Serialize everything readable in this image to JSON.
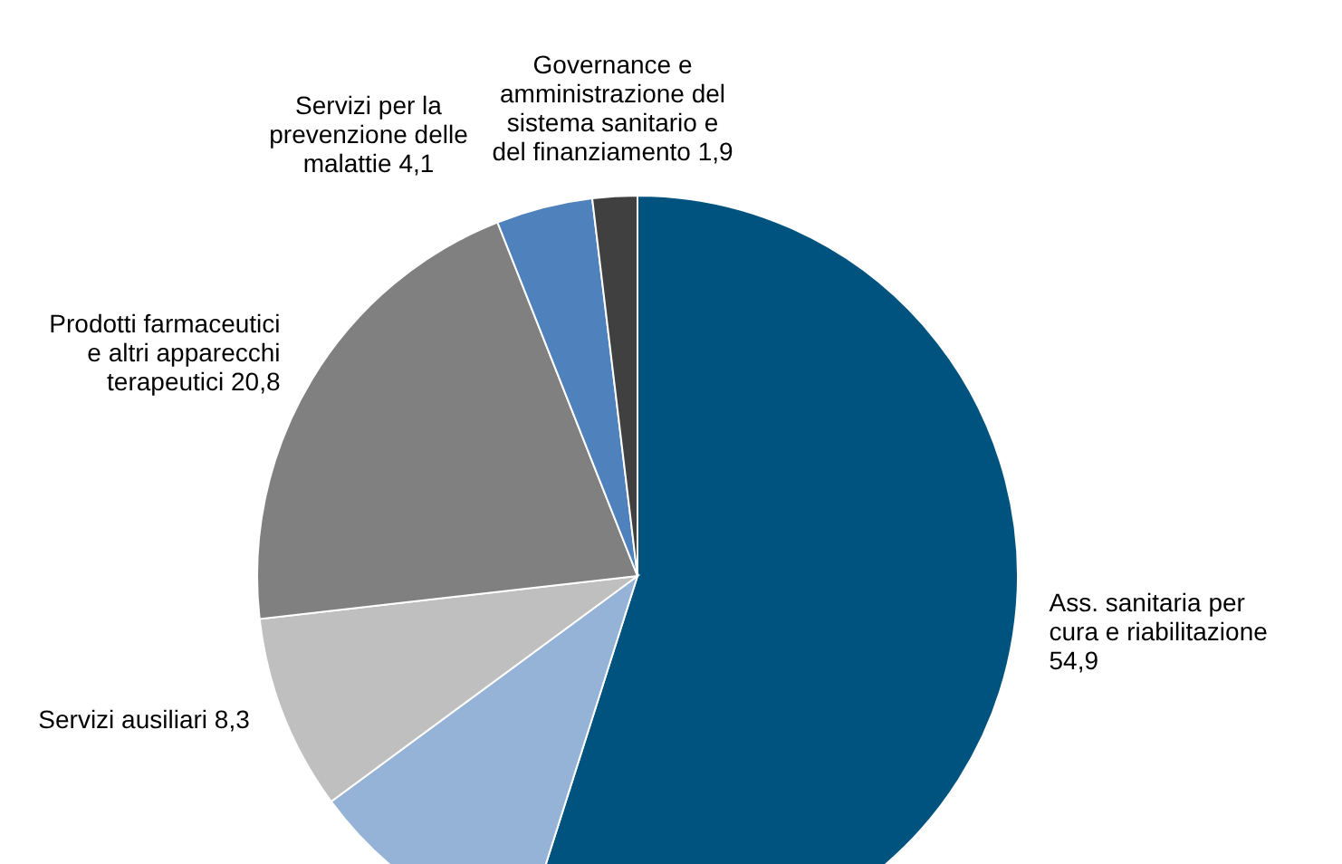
{
  "chart_data": {
    "type": "pie",
    "categories": [
      "Ass. sanitaria per cura e riabilitazione",
      null,
      "Servizi ausiliari",
      "Prodotti farmaceutici e altri apparecchi terapeutici",
      "Servizi per la prevenzione delle malattie",
      "Governance e amministrazione del sistema sanitario e del finanziamento"
    ],
    "values": [
      54.9,
      10.0,
      8.3,
      20.8,
      4.1,
      1.9
    ],
    "value_labels": [
      "54,9",
      null,
      "8,3",
      "20,8",
      "4,1",
      "1,9"
    ],
    "colors": [
      "#00537f",
      "#95b3d7",
      "#bfbfbf",
      "#808080",
      "#4f81bd",
      "#404040"
    ]
  }
}
